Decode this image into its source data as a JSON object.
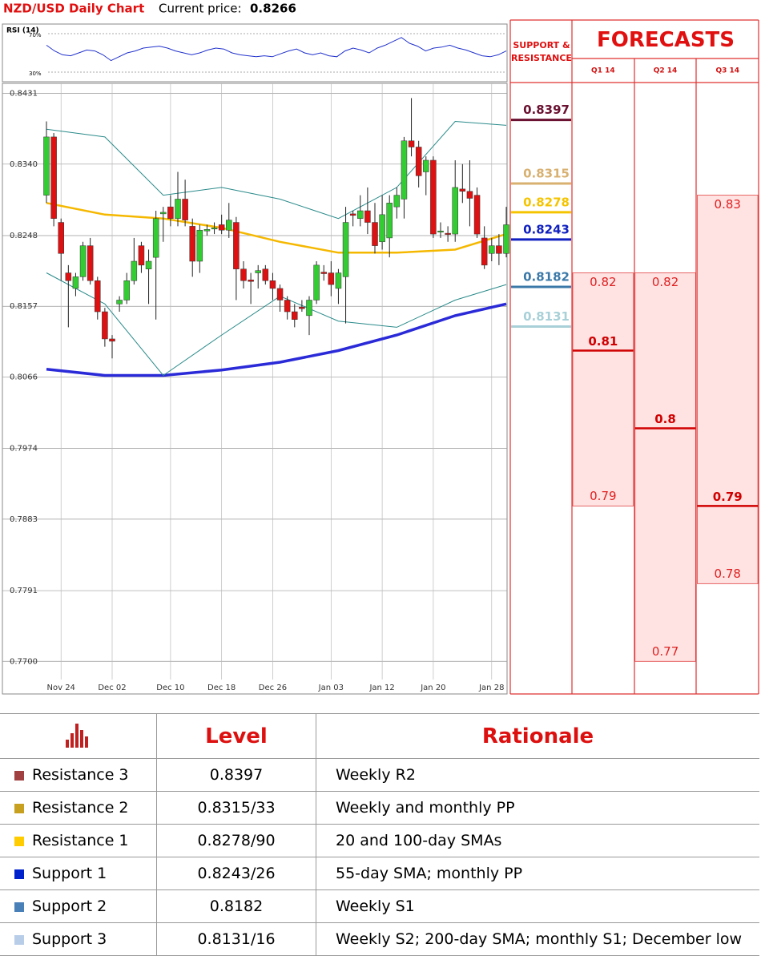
{
  "header": {
    "title": "NZD/USD Daily Chart",
    "price_label": "Current price:",
    "price": "0.8266"
  },
  "chart_data": [
    {
      "type": "line",
      "title": "RSI (14)",
      "ylim": [
        20,
        80
      ],
      "yticks": [
        {
          "value": 70,
          "label": "70%"
        },
        {
          "value": 30,
          "label": "30%"
        }
      ],
      "color": "#2233cc",
      "values": [
        58,
        52,
        48,
        47,
        50,
        53,
        52,
        48,
        42,
        46,
        50,
        52,
        55,
        56,
        57,
        55,
        52,
        50,
        48,
        50,
        53,
        55,
        54,
        50,
        48,
        47,
        46,
        47,
        46,
        49,
        52,
        54,
        50,
        48,
        50,
        47,
        46,
        52,
        55,
        53,
        50,
        55,
        58,
        62,
        66,
        60,
        57,
        52,
        55,
        56,
        58,
        55,
        53,
        50,
        47,
        46,
        48,
        52
      ]
    },
    {
      "type": "candlestick",
      "grid": true,
      "up_color": "#33cc33",
      "down_color": "#dd1111",
      "ylim": [
        0.7658,
        0.8444
      ],
      "yticks": [
        0.8431,
        {
          "value": 0.834,
          "label": "0.8340"
        },
        0.8248,
        0.8157,
        0.8066,
        0.7974,
        0.7883,
        0.7791,
        {
          "value": 0.77,
          "label": "0.7700"
        }
      ],
      "categories": [
        null,
        null,
        "Nov 24",
        null,
        null,
        null,
        null,
        null,
        null,
        "Dec 02",
        null,
        null,
        null,
        null,
        null,
        null,
        null,
        "Dec 10",
        null,
        null,
        null,
        null,
        null,
        null,
        "Dec 18",
        null,
        null,
        null,
        null,
        null,
        null,
        "Dec 26",
        null,
        null,
        null,
        null,
        null,
        null,
        null,
        "Jan 03",
        null,
        null,
        null,
        null,
        null,
        null,
        "Jan 12",
        null,
        null,
        null,
        null,
        null,
        null,
        "Jan 20",
        null,
        null,
        null,
        null,
        null,
        null,
        null,
        "Jan 28",
        null,
        null
      ],
      "open": [
        0.83,
        0.8375,
        0.8265,
        0.82,
        0.818,
        0.8195,
        0.8235,
        0.819,
        0.815,
        0.8115,
        0.816,
        0.8165,
        0.819,
        0.8235,
        0.8205,
        0.822,
        0.8276,
        0.8285,
        0.827,
        0.8295,
        0.826,
        0.8215,
        0.8254,
        0.8257,
        0.8262,
        0.8255,
        0.8265,
        0.8205,
        0.8191,
        0.82,
        0.8205,
        0.819,
        0.818,
        0.8165,
        0.815,
        0.8156,
        0.8145,
        0.8165,
        0.8201,
        0.82,
        0.818,
        0.8195,
        0.8276,
        0.827,
        0.828,
        0.8265,
        0.824,
        0.8245,
        0.8285,
        0.8295,
        0.837,
        0.8362,
        0.833,
        0.8345,
        0.8253,
        0.8251,
        0.825,
        0.8308,
        0.8305,
        0.83,
        0.8245,
        0.8225,
        0.8235,
        0.8225
      ],
      "high": [
        0.8395,
        0.838,
        0.827,
        0.821,
        0.82,
        0.824,
        0.8245,
        0.8195,
        0.8155,
        0.812,
        0.817,
        0.82,
        0.8245,
        0.824,
        0.823,
        0.828,
        0.8285,
        0.83,
        0.833,
        0.832,
        0.827,
        0.8262,
        0.8262,
        0.8265,
        0.8275,
        0.829,
        0.8272,
        0.8215,
        0.82,
        0.821,
        0.821,
        0.82,
        0.8185,
        0.817,
        0.816,
        0.8165,
        0.817,
        0.8215,
        0.821,
        0.8215,
        0.8205,
        0.8285,
        0.828,
        0.83,
        0.831,
        0.829,
        0.83,
        0.83,
        0.831,
        0.8375,
        0.8425,
        0.837,
        0.835,
        0.835,
        0.8265,
        0.826,
        0.8345,
        0.834,
        0.8345,
        0.831,
        0.826,
        0.8245,
        0.825,
        0.8285
      ],
      "low": [
        0.829,
        0.826,
        0.819,
        0.813,
        0.817,
        0.819,
        0.8185,
        0.814,
        0.8105,
        0.809,
        0.815,
        0.816,
        0.8185,
        0.82,
        0.816,
        0.814,
        0.824,
        0.826,
        0.826,
        0.826,
        0.8195,
        0.82,
        0.8248,
        0.825,
        0.825,
        0.8245,
        0.8165,
        0.818,
        0.816,
        0.818,
        0.8185,
        0.8165,
        0.815,
        0.814,
        0.813,
        0.815,
        0.812,
        0.816,
        0.819,
        0.817,
        0.816,
        0.8135,
        0.826,
        0.826,
        0.825,
        0.8225,
        0.823,
        0.822,
        0.827,
        0.827,
        0.835,
        0.831,
        0.83,
        0.8245,
        0.8245,
        0.824,
        0.824,
        0.829,
        0.826,
        0.8245,
        0.8205,
        0.8215,
        0.821,
        0.822
      ],
      "close": [
        0.8375,
        0.827,
        0.8225,
        0.819,
        0.8195,
        0.8235,
        0.819,
        0.815,
        0.8115,
        0.8112,
        0.8165,
        0.819,
        0.8215,
        0.821,
        0.8215,
        0.827,
        0.8278,
        0.827,
        0.8295,
        0.8268,
        0.8215,
        0.8255,
        0.8256,
        0.8258,
        0.8255,
        0.8268,
        0.8205,
        0.819,
        0.8189,
        0.8203,
        0.819,
        0.818,
        0.8165,
        0.815,
        0.814,
        0.8154,
        0.8165,
        0.821,
        0.8199,
        0.8185,
        0.82,
        0.8265,
        0.8274,
        0.828,
        0.8265,
        0.8235,
        0.8275,
        0.829,
        0.83,
        0.837,
        0.8362,
        0.8325,
        0.8345,
        0.825,
        0.8254,
        0.825,
        0.831,
        0.8305,
        0.8296,
        0.825,
        0.821,
        0.8235,
        0.8225,
        0.8262
      ],
      "overlays": [
        {
          "color": "#2a2ad8",
          "width": 3.5,
          "x": [
            0,
            8,
            16,
            24,
            32,
            40,
            48,
            56,
            63
          ],
          "values": [
            0.8076,
            0.8068,
            0.8068,
            0.8075,
            0.8085,
            0.81,
            0.812,
            0.8145,
            0.816
          ]
        },
        {
          "color": "#f5b800",
          "width": 2.5,
          "x": [
            0,
            8,
            16,
            24,
            32,
            40,
            48,
            56,
            63
          ],
          "values": [
            0.829,
            0.8275,
            0.827,
            0.8258,
            0.824,
            0.8226,
            0.8226,
            0.823,
            0.825
          ]
        },
        {
          "color": "#2a8a8a",
          "width": 1,
          "x": [
            0,
            8,
            16,
            24,
            32,
            40,
            48,
            56,
            63
          ],
          "values": [
            0.8385,
            0.8375,
            0.83,
            0.831,
            0.8295,
            0.827,
            0.831,
            0.8395,
            0.839
          ]
        },
        {
          "color": "#2a8a8a",
          "width": 1,
          "x": [
            0,
            8,
            16,
            24,
            32,
            40,
            48,
            56,
            63
          ],
          "values": [
            0.82,
            0.816,
            0.8068,
            0.812,
            0.817,
            0.8138,
            0.813,
            0.8165,
            0.8185
          ]
        }
      ]
    },
    {
      "type": "levels",
      "title": "SUPPORT & RESISTANCE",
      "ylim": [
        0.7658,
        0.8444
      ],
      "values": [
        0.8397,
        0.8315,
        0.8278,
        0.8243,
        0.8182,
        0.8131
      ],
      "colors": [
        "#6a1030",
        "#d8b070",
        "#f5c400",
        "#1020c0",
        "#3a78a8",
        "#a8d0d8"
      ]
    },
    {
      "type": "range",
      "title": "FORECASTS",
      "ylim": [
        0.7658,
        0.8444
      ],
      "categories": [
        "Q1 14",
        "Q2 14",
        "Q3 14"
      ],
      "high": [
        0.82,
        0.82,
        0.83
      ],
      "mid": [
        0.81,
        0.8,
        0.79
      ],
      "low": [
        0.79,
        0.77,
        0.78
      ]
    }
  ],
  "table": {
    "columns": [
      "Level",
      "Rationale"
    ],
    "rows": [
      {
        "name": "Resistance 3",
        "color": "#a04040",
        "level": "0.8397",
        "rationale": "Weekly R2"
      },
      {
        "name": "Resistance 2",
        "color": "#c8a020",
        "level": "0.8315/33",
        "rationale": "Weekly and monthly PP"
      },
      {
        "name": "Resistance 1",
        "color": "#ffcc00",
        "level": "0.8278/90",
        "rationale": "20 and 100-day SMAs"
      },
      {
        "name": "Support 1",
        "color": "#0022cc",
        "level": "0.8243/26",
        "rationale": "55-day SMA; monthly PP"
      },
      {
        "name": "Support 2",
        "color": "#4a80b8",
        "level": "0.8182",
        "rationale": "Weekly S1"
      },
      {
        "name": "Support 3",
        "color": "#b8cde8",
        "level": "0.8131/16",
        "rationale": "Weekly S2; 200-day SMA; monthly S1; December low"
      }
    ]
  }
}
